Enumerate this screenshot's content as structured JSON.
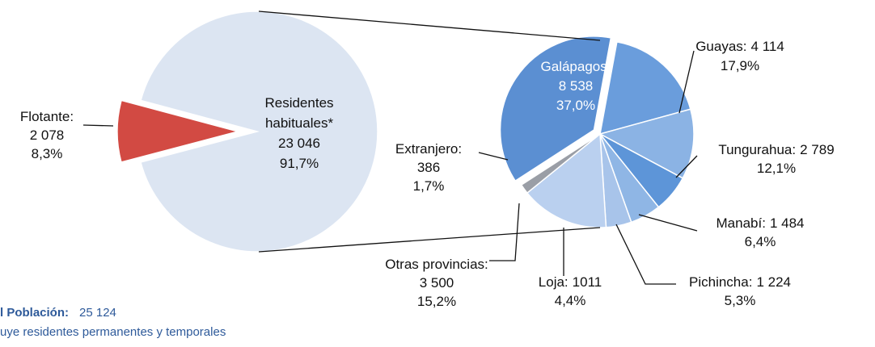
{
  "chart_data": [
    {
      "type": "pie",
      "categories": [
        "Residentes habituales*",
        "Flotante:"
      ],
      "values": [
        23046,
        2078
      ],
      "value_labels": [
        "23 046",
        "2 078"
      ],
      "percents": [
        91.7,
        8.3
      ],
      "percent_labels": [
        "91,7%",
        "8,3%"
      ],
      "colors": [
        "#dce5f2",
        "#d24a43"
      ]
    },
    {
      "type": "pie",
      "categories": [
        "Galápagos:",
        "Guayas:",
        "Tungurahua:",
        "Manabí:",
        "Pichincha:",
        "Loja:",
        "Otras provincias:",
        "Extranjero:"
      ],
      "values": [
        8538,
        4114,
        2789,
        1484,
        1224,
        1011,
        3500,
        386
      ],
      "value_labels": [
        "8 538",
        "4 114",
        "2 789",
        "1 484",
        "1 224",
        "1011",
        "3 500",
        "386"
      ],
      "percents": [
        37.0,
        17.9,
        12.1,
        6.4,
        5.3,
        4.4,
        15.2,
        1.7
      ],
      "percent_labels": [
        "37,0%",
        "17,9%",
        "12,1%",
        "6,4%",
        "5,3%",
        "4,4%",
        "15,2%",
        "1,7%"
      ],
      "colors": [
        "#5b8fd2",
        "#6a9ddc",
        "#8bb3e4",
        "#5d95d8",
        "#8fb6e5",
        "#a8c4ea",
        "#bad0ef",
        "#9a9ea6"
      ]
    }
  ],
  "footer": {
    "label": "l Población:",
    "value": "25 124",
    "note": "uye residentes permanentes y temporales"
  }
}
